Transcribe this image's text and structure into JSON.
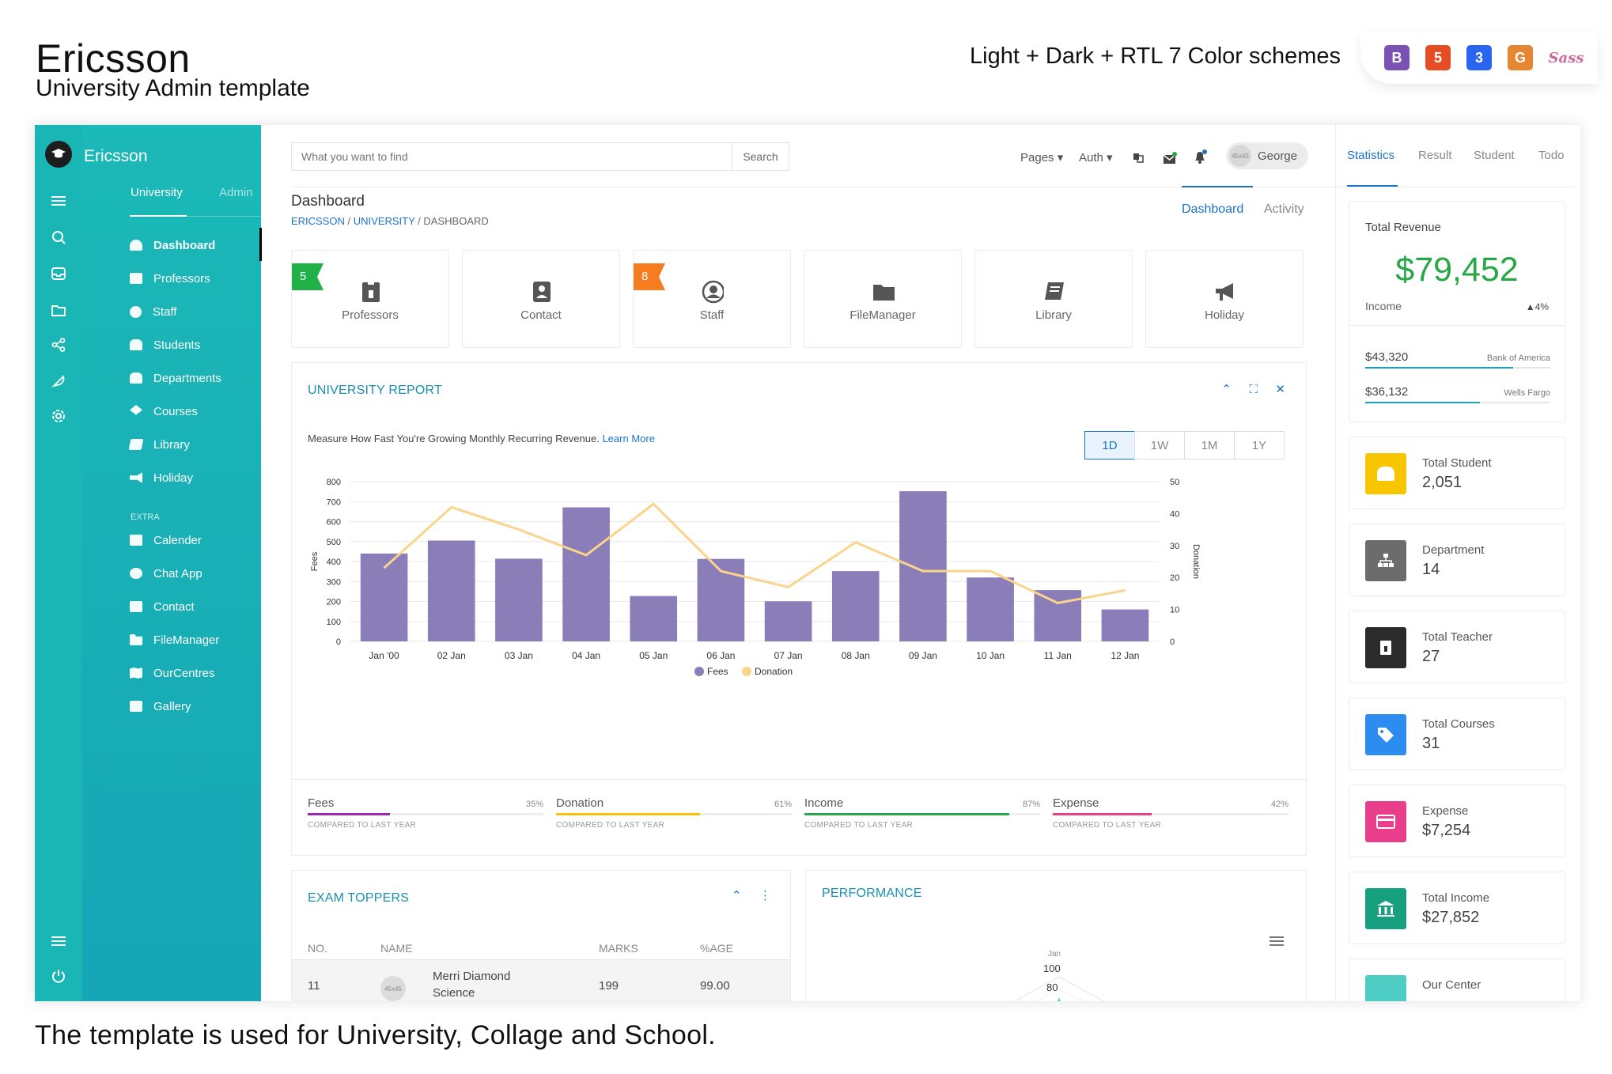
{
  "promo": {
    "title": "Ericsson",
    "subtitle": "University Admin template",
    "schemes": "Light + Dark + RTL 7 Color schemes",
    "footer": "The template is used for University, Collage and School.",
    "badges": [
      {
        "icon": "bootstrap-icon",
        "text": "B",
        "color": "#7952b3"
      },
      {
        "icon": "html5-icon",
        "text": "5",
        "color": "#e44d26"
      },
      {
        "icon": "css3-icon",
        "text": "3",
        "color": "#2965f1"
      },
      {
        "icon": "grunt-icon",
        "text": "G",
        "color": "#e48632"
      },
      {
        "icon": "sass-icon",
        "text": "Sass",
        "color": "#cd6799"
      }
    ]
  },
  "sidebar": {
    "brand": "Ericsson",
    "tabs": [
      "University",
      "Admin"
    ],
    "items": [
      "Dashboard",
      "Professors",
      "Staff",
      "Students",
      "Departments",
      "Courses",
      "Library",
      "Holiday"
    ],
    "extra_label": "EXTRA",
    "extra_items": [
      "Calender",
      "Chat App",
      "Contact",
      "FileManager",
      "OurCentres",
      "Gallery"
    ]
  },
  "topbar": {
    "search_placeholder": "What you want to find",
    "search_button": "Search",
    "nav": [
      "Pages ▾",
      "Auth ▾"
    ],
    "avatar_text": "45x45",
    "user_name": "George"
  },
  "page": {
    "title": "Dashboard",
    "breadcrumb": [
      "ERICSSON",
      "UNIVERSITY",
      "DASHBOARD"
    ],
    "tabs": [
      "Dashboard",
      "Activity"
    ]
  },
  "tiles": [
    {
      "label": "Professors",
      "badge": "5",
      "badge_color": "#21b149",
      "icon": "id-badge-icon"
    },
    {
      "label": "Contact",
      "badge": "",
      "badge_color": "",
      "icon": "address-book-icon"
    },
    {
      "label": "Staff",
      "badge": "8",
      "badge_color": "#f57c1f",
      "icon": "user-circle-icon"
    },
    {
      "label": "FileManager",
      "badge": "",
      "badge_color": "",
      "icon": "folder-icon"
    },
    {
      "label": "Library",
      "badge": "",
      "badge_color": "",
      "icon": "book-icon"
    },
    {
      "label": "Holiday",
      "badge": "",
      "badge_color": "",
      "icon": "megaphone-icon"
    }
  ],
  "report": {
    "title": "UNIVERSITY REPORT",
    "description": "Measure How Fast You're Growing Monthly Recurring Revenue.",
    "learn_more": "Learn More",
    "ranges": [
      "1D",
      "1W",
      "1M",
      "1Y"
    ],
    "active_range": "1D",
    "stats": [
      {
        "name": "Fees",
        "pct": "35%",
        "fill": 0.35,
        "color": "#9c27b0",
        "compare": "COMPARED TO LAST YEAR"
      },
      {
        "name": "Donation",
        "pct": "61%",
        "fill": 0.61,
        "color": "#ffc107",
        "compare": "COMPARED TO LAST YEAR"
      },
      {
        "name": "Income",
        "pct": "87%",
        "fill": 0.87,
        "color": "#27a745",
        "compare": "COMPARED TO LAST YEAR"
      },
      {
        "name": "Expense",
        "pct": "42%",
        "fill": 0.42,
        "color": "#e83e8c",
        "compare": "COMPARED TO LAST YEAR"
      }
    ]
  },
  "chart_data": {
    "type": "bar",
    "categories": [
      "Jan '00",
      "02 Jan",
      "03 Jan",
      "04 Jan",
      "05 Jan",
      "06 Jan",
      "07 Jan",
      "08 Jan",
      "09 Jan",
      "10 Jan",
      "11 Jan",
      "12 Jan"
    ],
    "series": [
      {
        "name": "Fees",
        "type": "bar",
        "axis": "left",
        "color": "#8a7db8",
        "values": [
          440,
          505,
          414,
          671,
          227,
          413,
          201,
          352,
          752,
          320,
          257,
          160
        ]
      },
      {
        "name": "Donation",
        "type": "line",
        "axis": "right",
        "color": "#f9d48b",
        "values": [
          23,
          42,
          35,
          27,
          43,
          22,
          17,
          31,
          22,
          22,
          12,
          16
        ]
      }
    ],
    "xlabel": "",
    "ylabel": "Fees",
    "y2label": "Donation",
    "ylim": [
      0,
      800
    ],
    "yticks": [
      0,
      100,
      200,
      300,
      400,
      500,
      600,
      700,
      800
    ],
    "y2lim": [
      0,
      50
    ],
    "y2ticks": [
      0,
      10,
      20,
      30,
      40,
      50
    ],
    "grid": true,
    "legend": "bottom"
  },
  "exam": {
    "title": "EXAM TOPPERS",
    "headers": [
      "NO.",
      "NAME",
      "MARKS",
      "%AGE"
    ],
    "rows": [
      {
        "no": "11",
        "avatar": "45x45",
        "name": "Merri Diamond",
        "subject": "Science",
        "marks": "199",
        "pct": "99.00"
      }
    ]
  },
  "performance": {
    "title": "PERFORMANCE",
    "month": "Jan",
    "ticks": [
      "100",
      "80"
    ]
  },
  "right": {
    "tabs": [
      "Statistics",
      "Result",
      "Student",
      "Todo"
    ],
    "revenue": {
      "label": "Total Revenue",
      "amount": "$79,452",
      "income_label": "Income",
      "income_pct": "▲4%",
      "banks": [
        {
          "amount": "$43,320",
          "name": "Bank of America",
          "fill": 0.8
        },
        {
          "amount": "$36,132",
          "name": "Wells Fargo",
          "fill": 0.62
        }
      ]
    },
    "cards": [
      {
        "label": "Total Student",
        "value": "2,051",
        "color": "#f7c600",
        "icon": "users-icon"
      },
      {
        "label": "Department",
        "value": "14",
        "color": "#6c6c6c",
        "icon": "sitemap-icon"
      },
      {
        "label": "Total Teacher",
        "value": "27",
        "color": "#2b2b2b",
        "icon": "id-badge-icon"
      },
      {
        "label": "Total Courses",
        "value": "31",
        "color": "#2d8cf0",
        "icon": "tags-icon"
      },
      {
        "label": "Expense",
        "value": "$7,254",
        "color": "#e83e8c",
        "icon": "credit-card-icon"
      },
      {
        "label": "Total Income",
        "value": "$27,852",
        "color": "#17a07f",
        "icon": "bank-icon"
      },
      {
        "label": "Our Center",
        "value": "",
        "color": "#4ecdc4",
        "icon": "map-icon"
      }
    ]
  }
}
